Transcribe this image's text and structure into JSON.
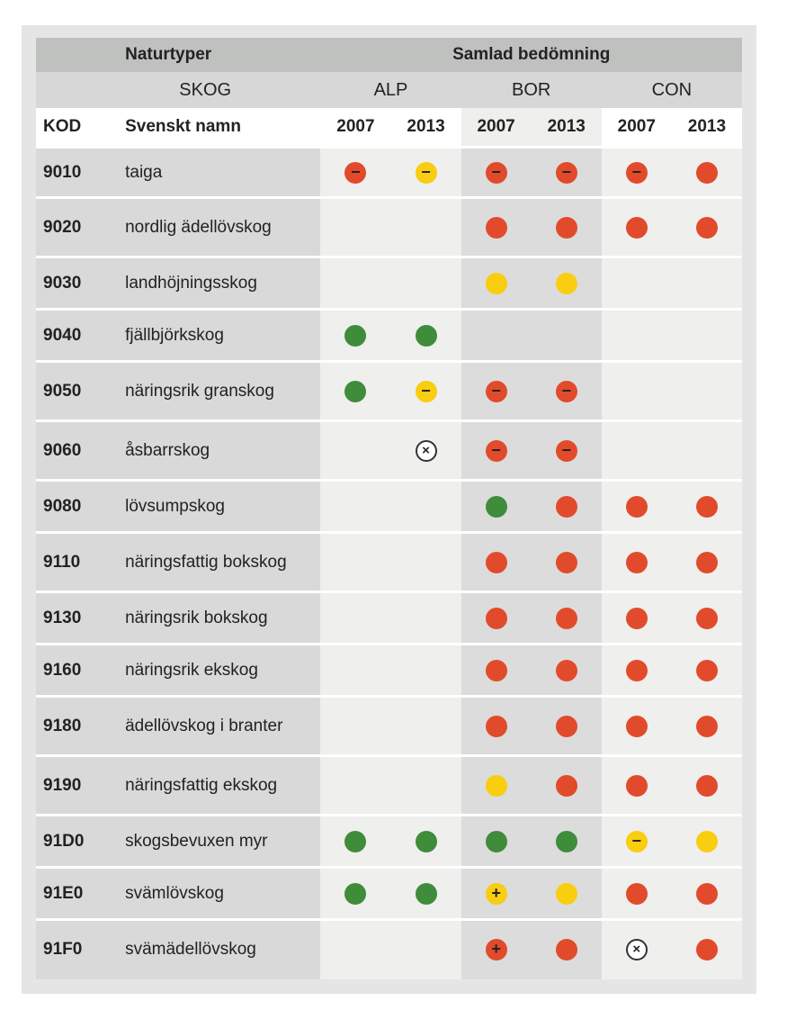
{
  "header": {
    "naturtyper": "Naturtyper",
    "samlad": "Samlad bedömning",
    "skog": "SKOG",
    "alp": "ALP",
    "bor": "BOR",
    "con": "CON",
    "kod": "KOD",
    "svenskt_namn": "Svenskt namn",
    "years": [
      "2007",
      "2013",
      "2007",
      "2013",
      "2007",
      "2013"
    ]
  },
  "colors": {
    "red": "#e14b2b",
    "yellow": "#f9cd10",
    "green": "#3f8c3b"
  },
  "rows": [
    {
      "kod": "9010",
      "name": "taiga",
      "vals": [
        "red-",
        "yellow-",
        "red-",
        "red-",
        "red-",
        "red"
      ]
    },
    {
      "kod": "9020",
      "name": "nordlig ädellövskog",
      "vals": [
        "",
        "",
        "red",
        "red",
        "red",
        "red"
      ]
    },
    {
      "kod": "9030",
      "name": "landhöjningsskog",
      "vals": [
        "",
        "",
        "yellow",
        "yellow",
        "",
        ""
      ]
    },
    {
      "kod": "9040",
      "name": "fjällbjörkskog",
      "vals": [
        "green",
        "green",
        "",
        "",
        "",
        ""
      ]
    },
    {
      "kod": "9050",
      "name": "näringsrik granskog",
      "vals": [
        "green",
        "yellow-",
        "red-",
        "red-",
        "",
        ""
      ]
    },
    {
      "kod": "9060",
      "name": "åsbarrskog",
      "vals": [
        "",
        "x",
        "red-",
        "red-",
        "",
        ""
      ]
    },
    {
      "kod": "9080",
      "name": "lövsumpskog",
      "vals": [
        "",
        "",
        "green",
        "red",
        "red",
        "red"
      ]
    },
    {
      "kod": "9110",
      "name": "näringsfattig bokskog",
      "vals": [
        "",
        "",
        "red",
        "red",
        "red",
        "red"
      ]
    },
    {
      "kod": "9130",
      "name": "näringsrik bokskog",
      "vals": [
        "",
        "",
        "red",
        "red",
        "red",
        "red"
      ]
    },
    {
      "kod": "9160",
      "name": "näringsrik ekskog",
      "vals": [
        "",
        "",
        "red",
        "red",
        "red",
        "red"
      ]
    },
    {
      "kod": "9180",
      "name": "ädellövskog i branter",
      "vals": [
        "",
        "",
        "red",
        "red",
        "red",
        "red"
      ]
    },
    {
      "kod": "9190",
      "name": "näringsfattig ekskog",
      "vals": [
        "",
        "",
        "yellow",
        "red",
        "red",
        "red"
      ]
    },
    {
      "kod": "91D0",
      "name": "skogsbevuxen myr",
      "vals": [
        "green",
        "green",
        "green",
        "green",
        "yellow-",
        "yellow"
      ]
    },
    {
      "kod": "91E0",
      "name": "svämlövskog",
      "vals": [
        "green",
        "green",
        "yellow+",
        "yellow",
        "red",
        "red"
      ]
    },
    {
      "kod": "91F0",
      "name": "svämädellövskog",
      "vals": [
        "",
        "",
        "red+",
        "red",
        "x",
        "red"
      ]
    }
  ]
}
